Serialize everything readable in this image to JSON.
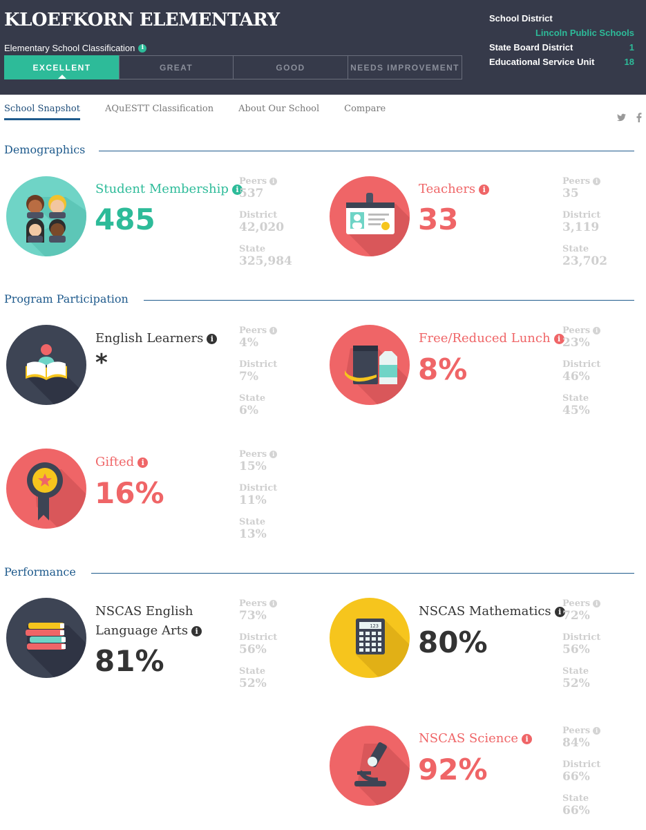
{
  "header": {
    "school_name": "KLOEFKORN ELEMENTARY",
    "classification_label": "Elementary School Classification",
    "ratings": [
      "EXCELLENT",
      "GREAT",
      "GOOD",
      "NEEDS IMPROVEMENT"
    ],
    "active_rating": "EXCELLENT",
    "district": {
      "school_district_label": "School District",
      "school_district_value": "Lincoln Public Schools",
      "state_board_label": "State Board District",
      "state_board_value": "1",
      "esu_label": "Educational Service Unit",
      "esu_value": "18"
    }
  },
  "nav": {
    "items": [
      "School Snapshot",
      "AQuESTT Classification",
      "About Our School",
      "Compare"
    ],
    "active": "School Snapshot",
    "social": [
      "twitter-icon",
      "facebook-icon"
    ]
  },
  "sections": {
    "demographics": "Demographics",
    "program": "Program Participation",
    "performance": "Performance"
  },
  "compare_labels": {
    "peers": "Peers",
    "district": "District",
    "state": "State"
  },
  "stats": {
    "student_membership": {
      "label": "Student Membership",
      "value": "485",
      "peers": "537",
      "district": "42,020",
      "state": "325,984"
    },
    "teachers": {
      "label": "Teachers",
      "value": "33",
      "peers": "35",
      "district": "3,119",
      "state": "23,702"
    },
    "english_learners": {
      "label": "English Learners",
      "value": "*",
      "peers": "4%",
      "district": "7%",
      "state": "6%"
    },
    "free_reduced_lunch": {
      "label": "Free/Reduced Lunch",
      "value": "8%",
      "peers": "23%",
      "district": "46%",
      "state": "45%"
    },
    "gifted": {
      "label": "Gifted",
      "value": "16%",
      "peers": "15%",
      "district": "11%",
      "state": "13%"
    },
    "nscas_ela": {
      "label_line1": "NSCAS English",
      "label_line2": "Language Arts",
      "value": "81%",
      "peers": "73%",
      "district": "56%",
      "state": "52%"
    },
    "nscas_math": {
      "label": "NSCAS Mathematics",
      "value": "80%",
      "peers": "72%",
      "district": "56%",
      "state": "52%"
    },
    "nscas_science": {
      "label": "NSCAS Science",
      "value": "92%",
      "peers": "84%",
      "district": "66%",
      "state": "66%"
    }
  },
  "colors": {
    "header_bg": "#363a4a",
    "teal": "#2dbb99",
    "coral": "#ef6567",
    "navy": "#1e5a8c",
    "yellow": "#f6c51d",
    "slate": "#3d4454"
  },
  "icon_text": {
    "info": "i",
    "calculator_display": "123"
  }
}
